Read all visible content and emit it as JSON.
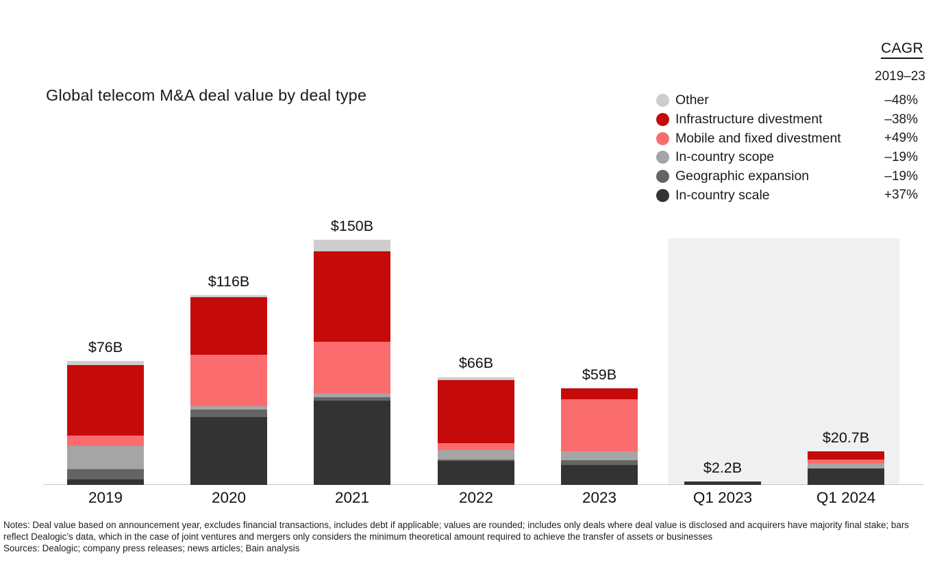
{
  "title": "Global telecom M&A deal value by deal type",
  "cagr": {
    "header": "CAGR",
    "period": "2019–23"
  },
  "legend": {
    "items": [
      {
        "label": "Other",
        "cagr": "–48%",
        "color": "#cdcdcd"
      },
      {
        "label": "Infrastructure divestment",
        "cagr": "–38%",
        "color": "#c40a0a"
      },
      {
        "label": "Mobile and fixed divestment",
        "cagr": "+49%",
        "color": "#fb6c6e"
      },
      {
        "label": "In-country scope",
        "cagr": "–19%",
        "color": "#a5a5a5"
      },
      {
        "label": "Geographic expansion",
        "cagr": "–19%",
        "color": "#646464"
      },
      {
        "label": "In-country scale",
        "cagr": "+37%",
        "color": "#333333"
      }
    ]
  },
  "chart_data": {
    "type": "bar",
    "subtype": "stacked",
    "unit": "US$ billions",
    "categories": [
      "2019",
      "2020",
      "2021",
      "2022",
      "2023",
      "Q1 2023",
      "Q1 2024"
    ],
    "totals": [
      76,
      116,
      150,
      66,
      59,
      2.2,
      20.7
    ],
    "totals_labels": [
      "$76B",
      "$116B",
      "$150B",
      "$66B",
      "$59B",
      "$2.2B",
      "$20.7B"
    ],
    "series": [
      {
        "name": "In-country scale",
        "color": "#333333",
        "values": [
          3.5,
          41.5,
          51.5,
          14.5,
          12,
          2.2,
          10
        ]
      },
      {
        "name": "Geographic expansion",
        "color": "#646464",
        "values": [
          6,
          4.5,
          2,
          1,
          3,
          0,
          0
        ]
      },
      {
        "name": "In-country scope",
        "color": "#a5a5a5",
        "values": [
          14.5,
          2,
          2.5,
          6,
          5.5,
          0,
          3
        ]
      },
      {
        "name": "Mobile and fixed divestment",
        "color": "#fb6c6e",
        "values": [
          6,
          31.5,
          31.5,
          4,
          32,
          0,
          2.5
        ]
      },
      {
        "name": "Infrastructure divestment",
        "color": "#c40a0a",
        "values": [
          43.5,
          35.5,
          55.5,
          38.5,
          6.5,
          0,
          5.2
        ]
      },
      {
        "name": "Other",
        "color": "#cdcdcd",
        "values": [
          2.5,
          1,
          7,
          2,
          0,
          0,
          0
        ]
      }
    ],
    "highlight_region": {
      "categories": [
        "Q1 2023",
        "Q1 2024"
      ],
      "color": "#f0f0f0"
    },
    "ylim": [
      0,
      150
    ],
    "grid": false,
    "legend_position": "top-right"
  },
  "notes": "Notes: Deal value based on announcement year, excludes financial transactions, includes debt if applicable; values are rounded; includes only deals where deal value is disclosed and acquirers have majority final stake; bars reflect Dealogic’s data, which in the case of joint ventures and mergers only considers the minimum theoretical amount required to achieve the transfer of assets or businesses",
  "sources": "Sources: Dealogic; company press releases; news articles; Bain analysis"
}
